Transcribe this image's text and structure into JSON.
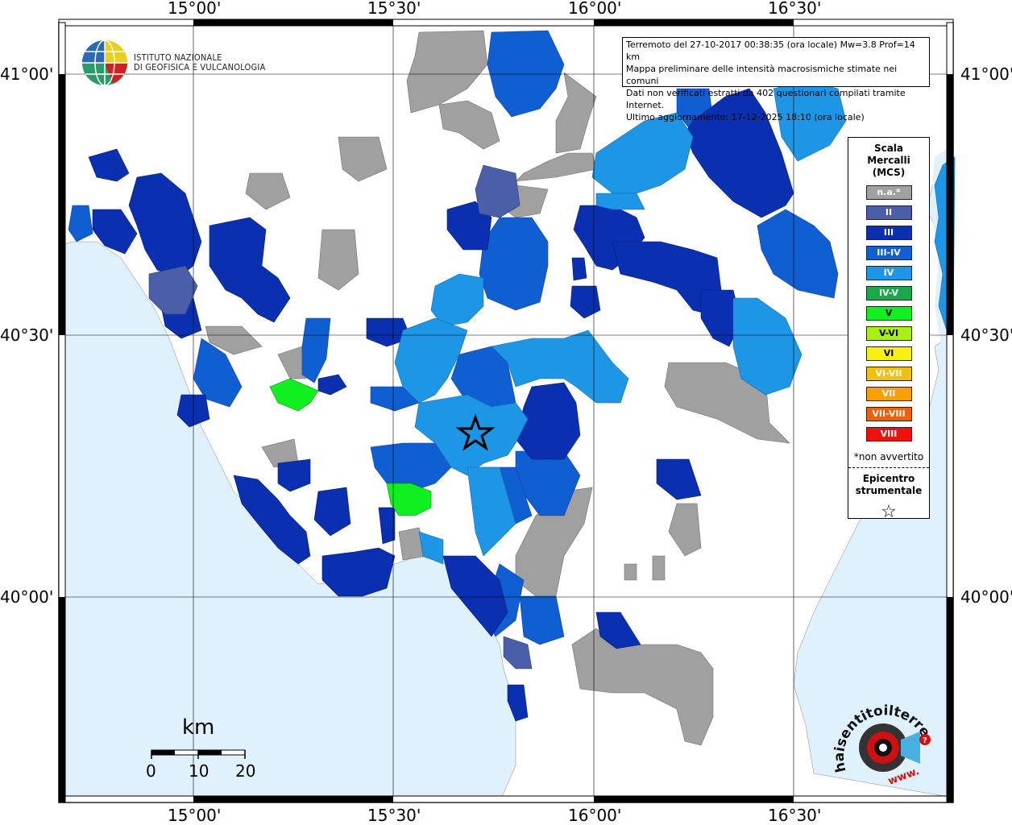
{
  "frame": {
    "lon_labels": [
      "15°00'",
      "15°30'",
      "16°00'",
      "16°30'"
    ],
    "lat_labels": [
      "41°00'",
      "40°30'",
      "40°00'"
    ]
  },
  "logo": {
    "line1": "ISTITUTO NAZIONALE",
    "line2": "DI GEOFISICA E VULCANOLOGIA"
  },
  "info": {
    "line1": "Terremoto del 27-10-2017 00:38:35 (ora locale) Mw=3.8 Prof=14 km",
    "line2": "Mappa preliminare delle intensità macrosismiche stimate nei comuni",
    "line3": "Dati non verificati estratti da 402 questionari compilati tramite Internet.",
    "line4": "Ultimo aggiornamento: 17-12-2025 18:10 (ora locale)"
  },
  "legend": {
    "title": [
      "Scala",
      "Mercalli",
      "(MCS)"
    ],
    "classes": [
      {
        "label": "n.a.*",
        "color": "#a0a0a0"
      },
      {
        "label": "II",
        "color": "#4a5fa8"
      },
      {
        "label": "III",
        "color": "#0a2fb0"
      },
      {
        "label": "III-IV",
        "color": "#0f5ed2"
      },
      {
        "label": "IV",
        "color": "#1e96e6"
      },
      {
        "label": "IV-V",
        "color": "#1aa84a"
      },
      {
        "label": "V",
        "color": "#10f020"
      },
      {
        "label": "V-VI",
        "color": "#a8f010"
      },
      {
        "label": "VI",
        "color": "#f8f010"
      },
      {
        "label": "VI-VII",
        "color": "#f0c010"
      },
      {
        "label": "VII",
        "color": "#f8a000"
      },
      {
        "label": "VII-VIII",
        "color": "#f06000"
      },
      {
        "label": "VIII",
        "color": "#f01010"
      }
    ],
    "note": "*non avvertito",
    "epicentre": [
      "Epicentro",
      "strumentale"
    ],
    "epicentre_symbol": "☆"
  },
  "scalebar": {
    "unit": "km",
    "ticks": [
      "0",
      "10",
      "20"
    ]
  },
  "branding": {
    "site": "haisentitoilterremoto.it",
    "prefix": "www."
  },
  "colors": {
    "sea": "#dff1fc",
    "land": "#ffffff",
    "frame": "#000000"
  }
}
